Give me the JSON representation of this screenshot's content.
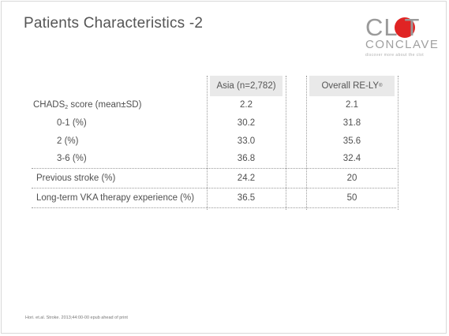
{
  "title": "Patients Characteristics -2",
  "logo": {
    "clot": "CL T",
    "conclave": "CONCLAVE",
    "tagline": "discover more about the clot"
  },
  "table": {
    "headers": [
      "Asia (n=2,782)",
      "Overall RE-LY"
    ],
    "header_superscript": "®",
    "rows": [
      {
        "label": "CHADS",
        "label_sub": "2",
        "label_suffix": " score (mean±SD)",
        "asia": "2.2",
        "overall": "2.1"
      },
      {
        "label": "0-1 (%)",
        "asia": "30.2",
        "overall": "31.8"
      },
      {
        "label": "2 (%)",
        "asia": "33.0",
        "overall": "35.6"
      },
      {
        "label": "3-6 (%)",
        "asia": "36.8",
        "overall": "32.4"
      },
      {
        "label": "Previous stroke (%)",
        "asia": "24.2",
        "overall": "20"
      },
      {
        "label": "Long-term VKA therapy experience (%)",
        "asia": "36.5",
        "overall": "50"
      }
    ]
  },
  "reference": "Hori. et.al. Stroke. 2013;44:00-00 epub ahead of print"
}
